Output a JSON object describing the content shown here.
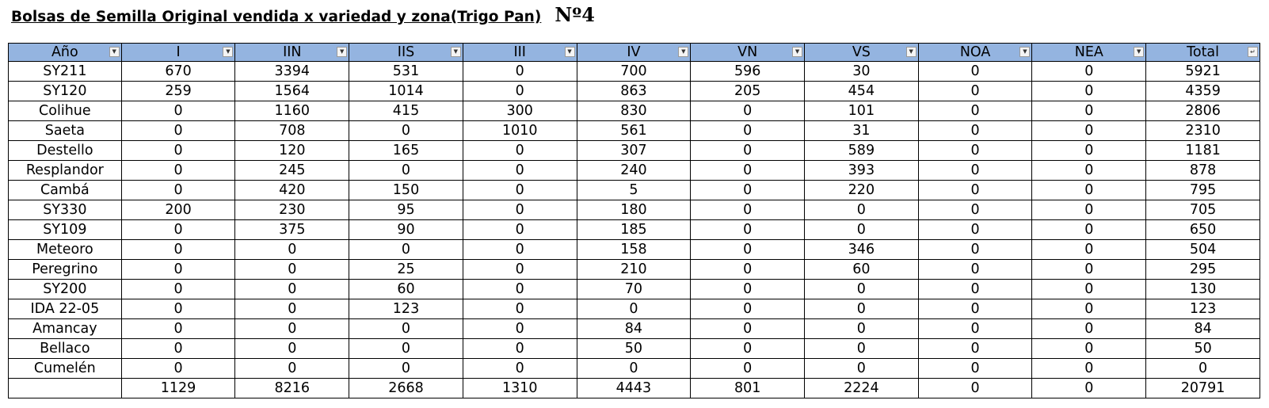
{
  "title": "Bolsas de Semilla Original vendida  x variedad y zona(Trigo Pan)",
  "title_number": "Nº4",
  "headers": [
    "Año",
    "I",
    "IIN",
    "IIS",
    "III",
    "IV",
    "VN",
    "VS",
    "NOA",
    "NEA",
    "Total"
  ],
  "icons": {
    "filter": "filter-dropdown-icon",
    "sorted_filter": "sort-filter-icon"
  },
  "colors": {
    "header_bg": "#94b4e0"
  },
  "rows": [
    {
      "name": "SY211",
      "bold": false,
      "values": [
        "670",
        "3394",
        "531",
        "0",
        "700",
        "596",
        "30",
        "0",
        "0",
        "5921"
      ]
    },
    {
      "name": "SY120",
      "bold": false,
      "values": [
        "259",
        "1564",
        "1014",
        "0",
        "863",
        "205",
        "454",
        "0",
        "0",
        "4359"
      ]
    },
    {
      "name": "Colihue",
      "bold": true,
      "values": [
        "0",
        "1160",
        "415",
        "300",
        "830",
        "0",
        "101",
        "0",
        "0",
        "2806"
      ]
    },
    {
      "name": "Saeta",
      "bold": false,
      "values": [
        "0",
        "708",
        "0",
        "1010",
        "561",
        "0",
        "31",
        "0",
        "0",
        "2310"
      ]
    },
    {
      "name": "Destello",
      "bold": false,
      "values": [
        "0",
        "120",
        "165",
        "0",
        "307",
        "0",
        "589",
        "0",
        "0",
        "1181"
      ]
    },
    {
      "name": "Resplandor",
      "bold": false,
      "values": [
        "0",
        "245",
        "0",
        "0",
        "240",
        "0",
        "393",
        "0",
        "0",
        "878"
      ]
    },
    {
      "name": "Cambá",
      "bold": false,
      "values": [
        "0",
        "420",
        "150",
        "0",
        "5",
        "0",
        "220",
        "0",
        "0",
        "795"
      ]
    },
    {
      "name": "SY330",
      "bold": false,
      "values": [
        "200",
        "230",
        "95",
        "0",
        "180",
        "0",
        "0",
        "0",
        "0",
        "705"
      ]
    },
    {
      "name": "SY109",
      "bold": true,
      "values": [
        "0",
        "375",
        "90",
        "0",
        "185",
        "0",
        "0",
        "0",
        "0",
        "650"
      ]
    },
    {
      "name": "Meteoro",
      "bold": false,
      "values": [
        "0",
        "0",
        "0",
        "0",
        "158",
        "0",
        "346",
        "0",
        "0",
        "504"
      ]
    },
    {
      "name": "Peregrino",
      "bold": true,
      "values": [
        "0",
        "0",
        "25",
        "0",
        "210",
        "0",
        "60",
        "0",
        "0",
        "295"
      ]
    },
    {
      "name": "SY200",
      "bold": false,
      "values": [
        "0",
        "0",
        "60",
        "0",
        "70",
        "0",
        "0",
        "0",
        "0",
        "130"
      ]
    },
    {
      "name": "IDA 22-05",
      "bold": false,
      "values": [
        "0",
        "0",
        "123",
        "0",
        "0",
        "0",
        "0",
        "0",
        "0",
        "123"
      ]
    },
    {
      "name": "Amancay",
      "bold": false,
      "values": [
        "0",
        "0",
        "0",
        "0",
        "84",
        "0",
        "0",
        "0",
        "0",
        "84"
      ]
    },
    {
      "name": "Bellaco",
      "bold": false,
      "values": [
        "0",
        "0",
        "0",
        "0",
        "50",
        "0",
        "0",
        "0",
        "0",
        "50"
      ]
    },
    {
      "name": "Cumelén",
      "bold": false,
      "values": [
        "0",
        "0",
        "0",
        "0",
        "0",
        "0",
        "0",
        "0",
        "0",
        "0"
      ]
    }
  ],
  "totals": {
    "name": "",
    "values": [
      "1129",
      "8216",
      "2668",
      "1310",
      "4443",
      "801",
      "2224",
      "0",
      "0",
      "20791"
    ]
  }
}
